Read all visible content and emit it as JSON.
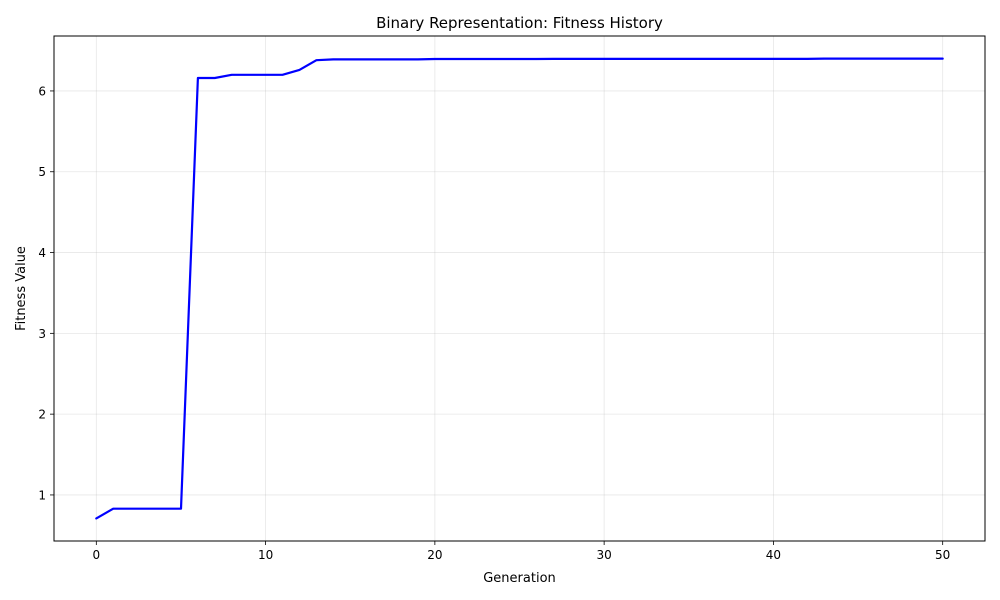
{
  "chart_data": {
    "type": "line",
    "title": "Binary Representation: Fitness History",
    "xlabel": "Generation",
    "ylabel": "Fitness Value",
    "xlim": [
      -2.5,
      52.5
    ],
    "ylim": [
      0.43,
      6.68
    ],
    "xticks": [
      0,
      10,
      20,
      30,
      40,
      50
    ],
    "yticks": [
      1,
      2,
      3,
      4,
      5,
      6
    ],
    "grid": true,
    "line_color": "#0000ff",
    "series": [
      {
        "x": [
          0,
          1,
          2,
          3,
          4,
          5,
          6,
          7,
          8,
          9,
          10,
          11,
          12,
          13,
          14,
          15,
          16,
          17,
          18,
          19,
          20,
          21,
          22,
          23,
          24,
          25,
          26,
          27,
          28,
          29,
          30,
          31,
          32,
          33,
          34,
          35,
          36,
          37,
          38,
          39,
          40,
          41,
          42,
          43,
          44,
          45,
          46,
          47,
          48,
          49,
          50
        ],
        "values": [
          0.71,
          0.83,
          0.83,
          0.83,
          0.83,
          0.83,
          6.16,
          6.16,
          6.2,
          6.2,
          6.2,
          6.2,
          6.26,
          6.38,
          6.39,
          6.39,
          6.39,
          6.39,
          6.39,
          6.39,
          6.395,
          6.395,
          6.395,
          6.395,
          6.395,
          6.395,
          6.395,
          6.397,
          6.397,
          6.397,
          6.397,
          6.397,
          6.397,
          6.397,
          6.397,
          6.397,
          6.397,
          6.397,
          6.397,
          6.397,
          6.397,
          6.397,
          6.397,
          6.4,
          6.4,
          6.4,
          6.4,
          6.4,
          6.4,
          6.4,
          6.4
        ]
      }
    ]
  }
}
